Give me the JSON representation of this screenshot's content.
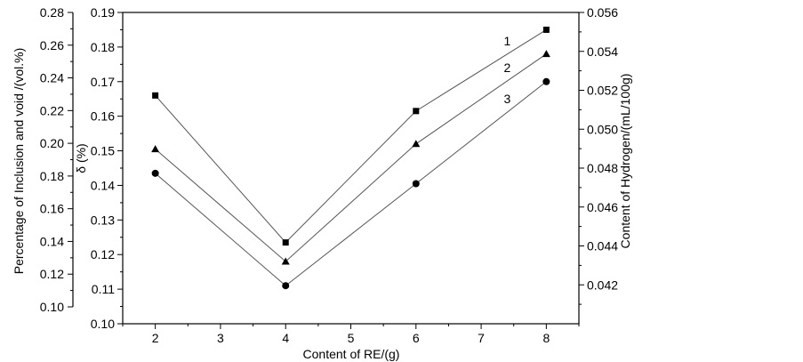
{
  "chart_data": {
    "type": "line",
    "x": [
      2,
      4,
      6,
      8
    ],
    "xlabel": "Content of RE/(g)",
    "xlim": [
      1.5,
      8.5
    ],
    "xticks": [
      "2",
      "3",
      "4",
      "5",
      "6",
      "7",
      "8"
    ],
    "axes": {
      "left_outer": {
        "label": "Percentage of Inclusion and void /(vol.%)",
        "lim": [
          0.1,
          0.28
        ],
        "ticks": [
          "0.10",
          "0.12",
          "0.14",
          "0.16",
          "0.18",
          "0.20",
          "0.22",
          "0.24",
          "0.26",
          "0.28"
        ]
      },
      "left_inner": {
        "label": "δ (%)",
        "lim": [
          0.1,
          0.19
        ],
        "ticks": [
          "0.10",
          "0.11",
          "0.12",
          "0.13",
          "0.14",
          "0.15",
          "0.16",
          "0.17",
          "0.18",
          "0.19"
        ]
      },
      "right": {
        "label": "Content of Hydrogen/(mL/100g)",
        "lim": [
          0.04,
          0.056
        ],
        "ticks": [
          "0.042",
          "0.044",
          "0.046",
          "0.048",
          "0.050",
          "0.052",
          "0.054",
          "0.056"
        ]
      }
    },
    "series": [
      {
        "name": "1",
        "marker": "square",
        "values": [
          0.166,
          0.1235,
          0.1615,
          0.185
        ]
      },
      {
        "name": "2",
        "marker": "triangle",
        "values": [
          0.1505,
          0.118,
          0.152,
          0.178
        ]
      },
      {
        "name": "3",
        "marker": "circle",
        "values": [
          0.1435,
          0.111,
          0.1405,
          0.17
        ]
      }
    ],
    "grid": false,
    "line_color": "#555555"
  }
}
